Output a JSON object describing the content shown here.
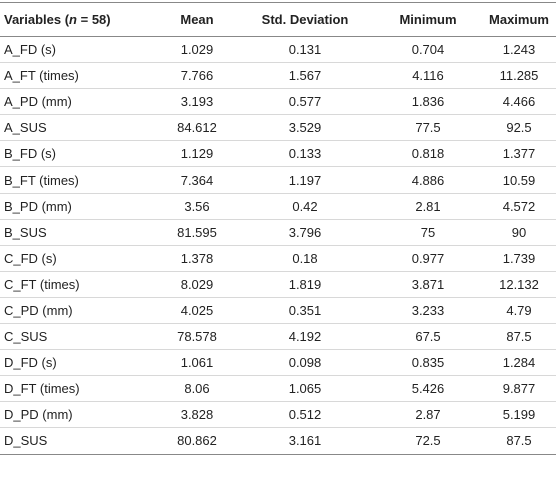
{
  "table": {
    "header": [
      {
        "prefix": "Variables (",
        "italic": "n",
        "suffix": " = 58)"
      },
      "Mean",
      "Std. Deviation",
      "Minimum",
      "Maximum"
    ],
    "rows": [
      [
        "A_FD (s)",
        "1.029",
        "0.131",
        "0.704",
        "1.243"
      ],
      [
        "A_FT (times)",
        "7.766",
        "1.567",
        "4.116",
        "11.285"
      ],
      [
        "A_PD (mm)",
        "3.193",
        "0.577",
        "1.836",
        "4.466"
      ],
      [
        "A_SUS",
        "84.612",
        "3.529",
        "77.5",
        "92.5"
      ],
      [
        "B_FD (s)",
        "1.129",
        "0.133",
        "0.818",
        "1.377"
      ],
      [
        "B_FT (times)",
        "7.364",
        "1.197",
        "4.886",
        "10.59"
      ],
      [
        "B_PD (mm)",
        "3.56",
        "0.42",
        "2.81",
        "4.572"
      ],
      [
        "B_SUS",
        "81.595",
        "3.796",
        "75",
        "90"
      ],
      [
        "C_FD (s)",
        "1.378",
        "0.18",
        "0.977",
        "1.739"
      ],
      [
        "C_FT (times)",
        "8.029",
        "1.819",
        "3.871",
        "12.132"
      ],
      [
        "C_PD (mm)",
        "4.025",
        "0.351",
        "3.233",
        "4.79"
      ],
      [
        "C_SUS",
        "78.578",
        "4.192",
        "67.5",
        "87.5"
      ],
      [
        "D_FD (s)",
        "1.061",
        "0.098",
        "0.835",
        "1.284"
      ],
      [
        "D_FT (times)",
        "8.06",
        "1.065",
        "5.426",
        "9.877"
      ],
      [
        "D_PD (mm)",
        "3.828",
        "0.512",
        "2.87",
        "5.199"
      ],
      [
        "D_SUS",
        "80.862",
        "3.161",
        "72.5",
        "87.5"
      ]
    ]
  }
}
